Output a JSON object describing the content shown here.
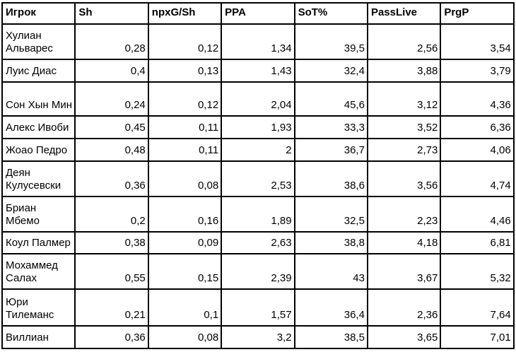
{
  "colors": {
    "background": "#ffffff",
    "border": "#000000",
    "text": "#000000"
  },
  "table": {
    "columns": [
      "Игрок",
      "Sh",
      "npxG/Sh",
      "PPA",
      "SoT%",
      "PassLive",
      "PrgP"
    ],
    "rows": [
      {
        "name": "Хулиан\nАльварес",
        "values": [
          "0,28",
          "0,12",
          "1,34",
          "39,5",
          "2,56",
          "3,54"
        ]
      },
      {
        "name": "Луис Диас",
        "values": [
          "0,4",
          "0,13",
          "1,43",
          "32,4",
          "3,88",
          "3,79"
        ]
      },
      {
        "name": "Сон Хын Мин",
        "values": [
          "0,24",
          "0,12",
          "2,04",
          "45,6",
          "3,12",
          "4,36"
        ]
      },
      {
        "name": "Алекс Ивоби",
        "values": [
          "0,45",
          "0,11",
          "1,93",
          "33,3",
          "3,52",
          "6,36"
        ]
      },
      {
        "name": "Жоао Педро",
        "values": [
          "0,48",
          "0,11",
          "2",
          "36,7",
          "2,73",
          "4,06"
        ]
      },
      {
        "name": "Деян\nКулусевски",
        "values": [
          "0,36",
          "0,08",
          "2,53",
          "38,6",
          "3,56",
          "4,74"
        ]
      },
      {
        "name": "Бриан\nМбемо",
        "values": [
          "0,2",
          "0,16",
          "1,89",
          "32,5",
          "2,23",
          "4,46"
        ]
      },
      {
        "name": "Коул Палмер",
        "values": [
          "0,38",
          "0,09",
          "2,63",
          "38,8",
          "4,18",
          "6,81"
        ]
      },
      {
        "name": "Мохаммед\nСалах",
        "values": [
          "0,55",
          "0,15",
          "2,39",
          "43",
          "3,67",
          "5,32"
        ]
      },
      {
        "name": "Юри\nТилеманс",
        "values": [
          "0,21",
          "0,1",
          "1,57",
          "36,4",
          "2,36",
          "7,64"
        ]
      },
      {
        "name": "Виллиан",
        "values": [
          "0,36",
          "0,08",
          "3,2",
          "38,5",
          "3,65",
          "7,01"
        ]
      }
    ]
  },
  "chart_data": {
    "type": "table",
    "columns": [
      "Игрок",
      "Sh",
      "npxG/Sh",
      "PPA",
      "SoT%",
      "PassLive",
      "PrgP"
    ],
    "rows": [
      [
        "Хулиан Альварес",
        0.28,
        0.12,
        1.34,
        39.5,
        2.56,
        3.54
      ],
      [
        "Луис Диас",
        0.4,
        0.13,
        1.43,
        32.4,
        3.88,
        3.79
      ],
      [
        "Сон Хын Мин",
        0.24,
        0.12,
        2.04,
        45.6,
        3.12,
        4.36
      ],
      [
        "Алекс Ивоби",
        0.45,
        0.11,
        1.93,
        33.3,
        3.52,
        6.36
      ],
      [
        "Жоао Педро",
        0.48,
        0.11,
        2.0,
        36.7,
        2.73,
        4.06
      ],
      [
        "Деян Кулусевски",
        0.36,
        0.08,
        2.53,
        38.6,
        3.56,
        4.74
      ],
      [
        "Бриан Мбемо",
        0.2,
        0.16,
        1.89,
        32.5,
        2.23,
        4.46
      ],
      [
        "Коул Палмер",
        0.38,
        0.09,
        2.63,
        38.8,
        4.18,
        6.81
      ],
      [
        "Мохаммед Салах",
        0.55,
        0.15,
        2.39,
        43.0,
        3.67,
        5.32
      ],
      [
        "Юри Тилеманс",
        0.21,
        0.1,
        1.57,
        36.4,
        2.36,
        7.64
      ],
      [
        "Виллиан",
        0.36,
        0.08,
        3.2,
        38.5,
        3.65,
        7.01
      ]
    ],
    "title": "",
    "grid": true,
    "decimal_separator": ","
  }
}
